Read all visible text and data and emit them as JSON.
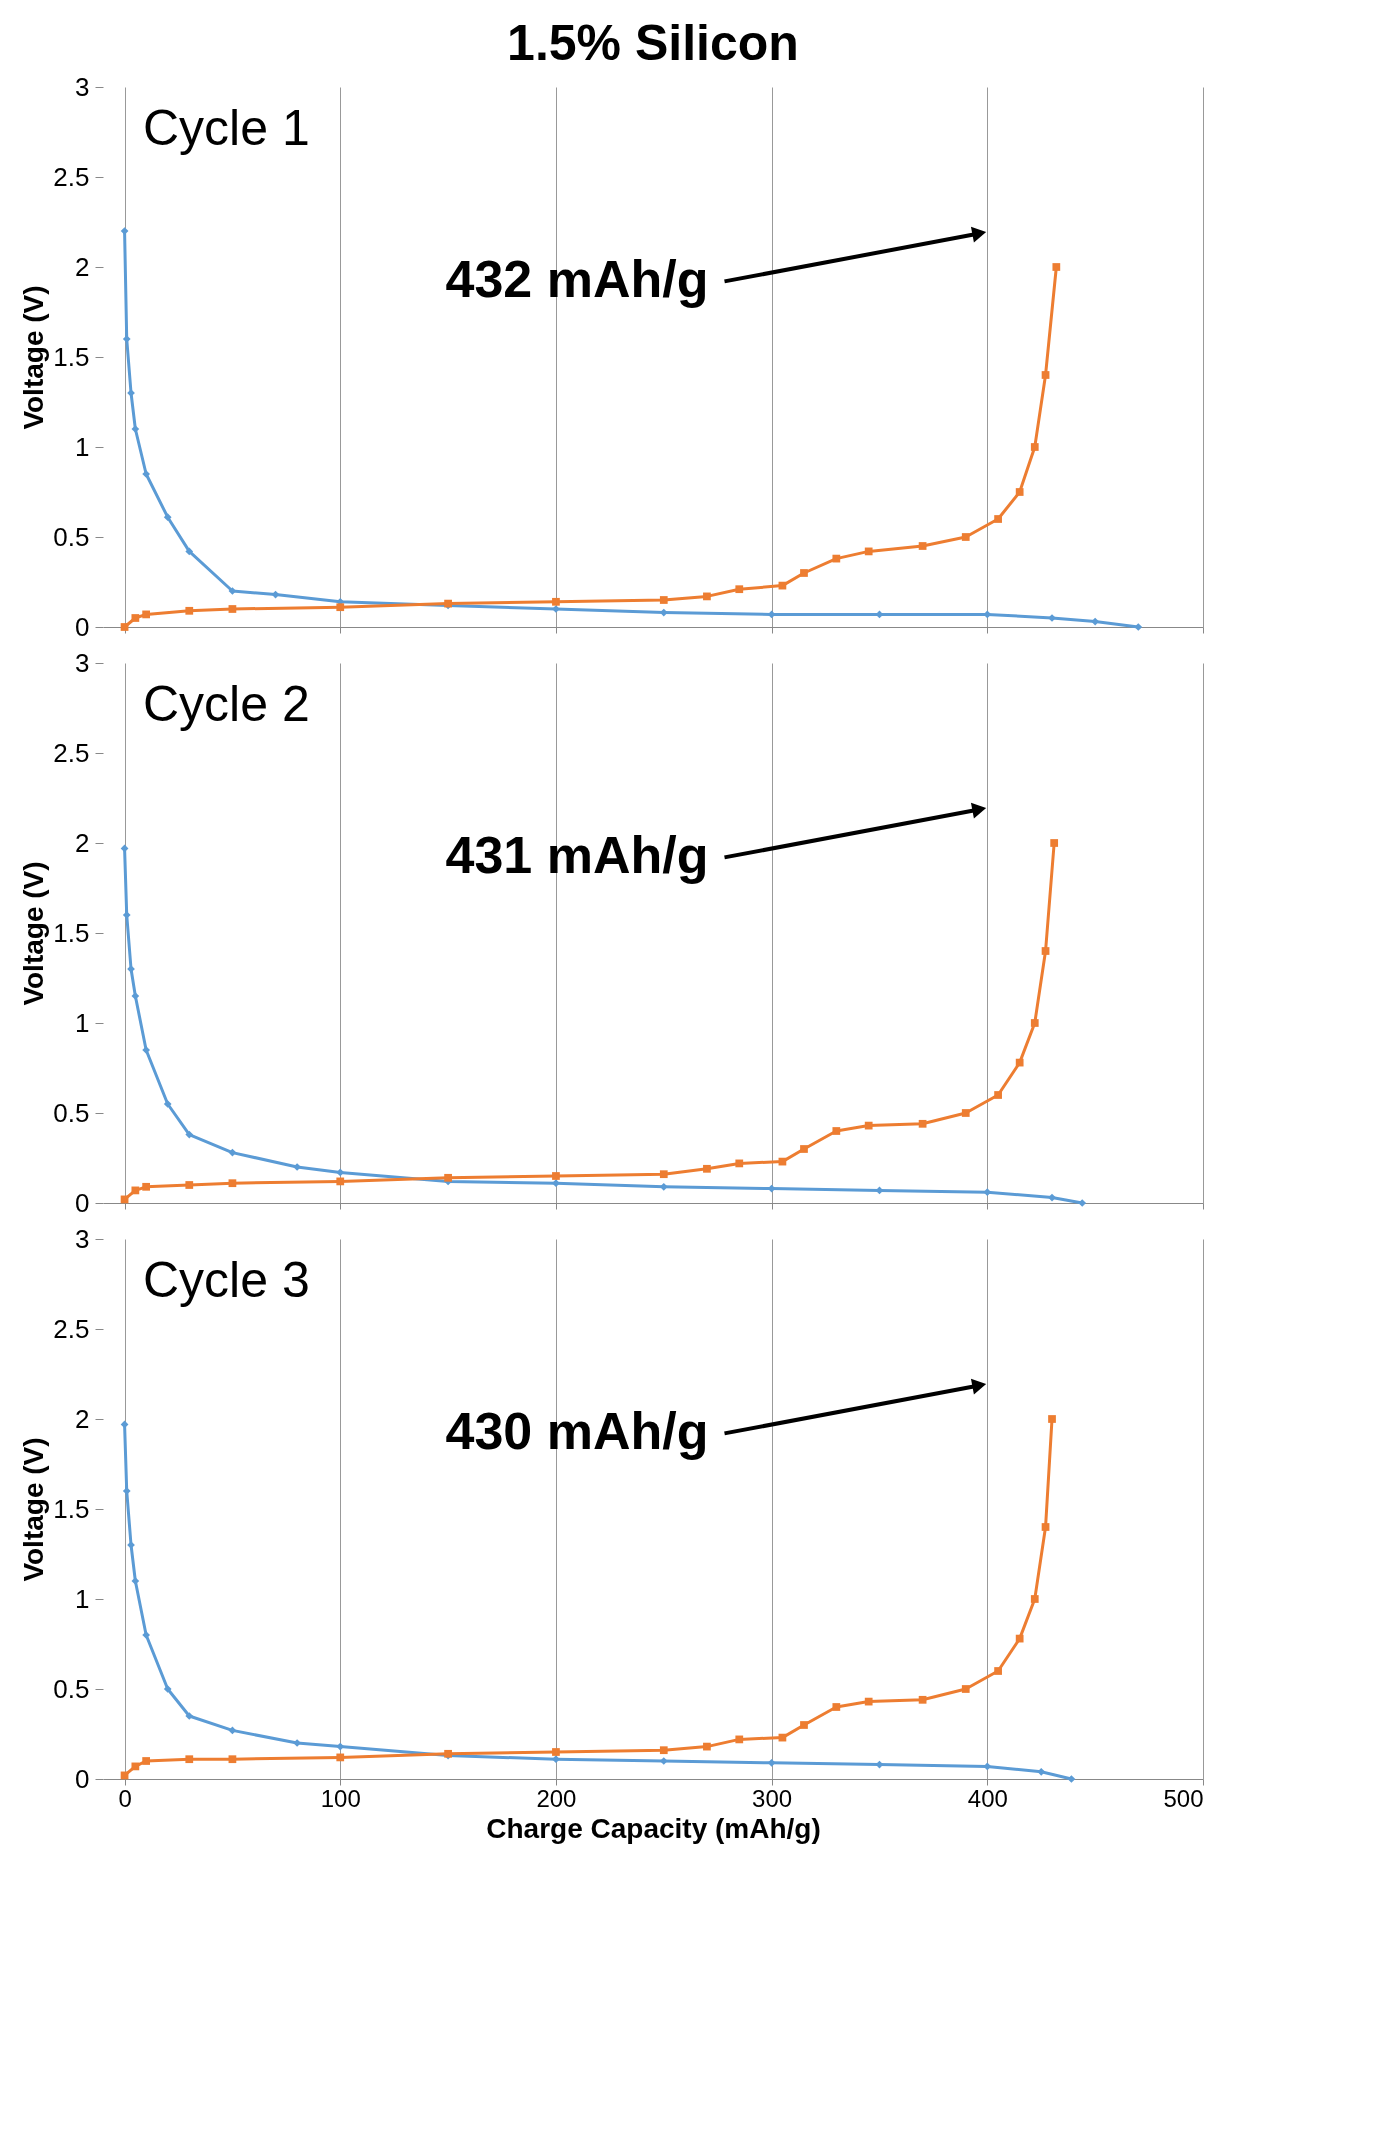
{
  "chart_data": [
    {
      "type": "line",
      "title": "1.5% Silicon",
      "ylabel": "Voltage (V)",
      "xlim": [
        -10,
        500
      ],
      "ylim": [
        0,
        3
      ],
      "xticks": [
        0,
        100,
        200,
        300,
        400,
        500
      ],
      "yticks": [
        0,
        0.5,
        1,
        1.5,
        2,
        2.5,
        3
      ],
      "grid": "x",
      "tick_labels": "y",
      "annotations": [
        "Cycle 1",
        "432 mAh/g"
      ],
      "series": [
        {
          "color": "#5b9bd5",
          "marker": "diamond",
          "x": [
            0,
            1,
            3,
            5,
            10,
            20,
            30,
            50,
            70,
            100,
            150,
            200,
            250,
            300,
            350,
            400,
            430,
            450,
            470
          ],
          "values": [
            2.2,
            1.6,
            1.3,
            1.1,
            0.85,
            0.61,
            0.42,
            0.2,
            0.18,
            0.14,
            0.12,
            0.1,
            0.08,
            0.07,
            0.07,
            0.07,
            0.05,
            0.03,
            0.0
          ]
        },
        {
          "color": "#ed7d31",
          "marker": "square",
          "x": [
            0,
            5,
            10,
            30,
            50,
            100,
            150,
            200,
            250,
            270,
            285,
            305,
            315,
            330,
            345,
            370,
            390,
            405,
            415,
            422,
            427,
            432
          ],
          "values": [
            0.0,
            0.05,
            0.07,
            0.09,
            0.1,
            0.11,
            0.13,
            0.14,
            0.15,
            0.17,
            0.21,
            0.23,
            0.3,
            0.38,
            0.42,
            0.45,
            0.5,
            0.6,
            0.75,
            1.0,
            1.4,
            2.0
          ]
        }
      ]
    },
    {
      "type": "line",
      "ylabel": "Voltage (V)",
      "xlim": [
        -10,
        500
      ],
      "ylim": [
        0,
        3
      ],
      "xticks": [
        0,
        100,
        200,
        300,
        400,
        500
      ],
      "yticks": [
        0,
        0.5,
        1,
        1.5,
        2,
        2.5,
        3
      ],
      "grid": "x",
      "tick_labels": "y",
      "annotations": [
        "Cycle 2",
        "431 mAh/g"
      ],
      "series": [
        {
          "color": "#5b9bd5",
          "marker": "diamond",
          "x": [
            0,
            1,
            3,
            5,
            10,
            20,
            30,
            50,
            80,
            100,
            150,
            200,
            250,
            300,
            350,
            400,
            430,
            444
          ],
          "values": [
            1.97,
            1.6,
            1.3,
            1.15,
            0.85,
            0.55,
            0.38,
            0.28,
            0.2,
            0.17,
            0.12,
            0.11,
            0.09,
            0.08,
            0.07,
            0.06,
            0.03,
            0.0
          ]
        },
        {
          "color": "#ed7d31",
          "marker": "square",
          "x": [
            0,
            5,
            10,
            30,
            50,
            100,
            150,
            200,
            250,
            270,
            285,
            305,
            315,
            330,
            345,
            370,
            390,
            405,
            415,
            422,
            427,
            431
          ],
          "values": [
            0.02,
            0.07,
            0.09,
            0.1,
            0.11,
            0.12,
            0.14,
            0.15,
            0.16,
            0.19,
            0.22,
            0.23,
            0.3,
            0.4,
            0.43,
            0.44,
            0.5,
            0.6,
            0.78,
            1.0,
            1.4,
            2.0
          ]
        }
      ]
    },
    {
      "type": "line",
      "ylabel": "Voltage (V)",
      "xlabel": "Charge Capacity (mAh/g)",
      "xlim": [
        -10,
        500
      ],
      "ylim": [
        0,
        3
      ],
      "xticks": [
        0,
        100,
        200,
        300,
        400,
        500
      ],
      "yticks": [
        0,
        0.5,
        1,
        1.5,
        2,
        2.5,
        3
      ],
      "grid": "x",
      "annotations": [
        "Cycle 3",
        "430 mAh/g"
      ],
      "series": [
        {
          "color": "#5b9bd5",
          "marker": "diamond",
          "x": [
            0,
            1,
            3,
            5,
            10,
            20,
            30,
            50,
            80,
            100,
            150,
            200,
            250,
            300,
            350,
            400,
            425,
            439
          ],
          "values": [
            1.97,
            1.6,
            1.3,
            1.1,
            0.8,
            0.5,
            0.35,
            0.27,
            0.2,
            0.18,
            0.13,
            0.11,
            0.1,
            0.09,
            0.08,
            0.07,
            0.04,
            0.0
          ]
        },
        {
          "color": "#ed7d31",
          "marker": "square",
          "x": [
            0,
            5,
            10,
            30,
            50,
            100,
            150,
            200,
            250,
            270,
            285,
            305,
            315,
            330,
            345,
            370,
            390,
            405,
            415,
            422,
            427,
            430
          ],
          "values": [
            0.02,
            0.07,
            0.1,
            0.11,
            0.11,
            0.12,
            0.14,
            0.15,
            0.16,
            0.18,
            0.22,
            0.23,
            0.3,
            0.4,
            0.43,
            0.44,
            0.5,
            0.6,
            0.78,
            1.0,
            1.4,
            2.0
          ]
        }
      ]
    }
  ]
}
